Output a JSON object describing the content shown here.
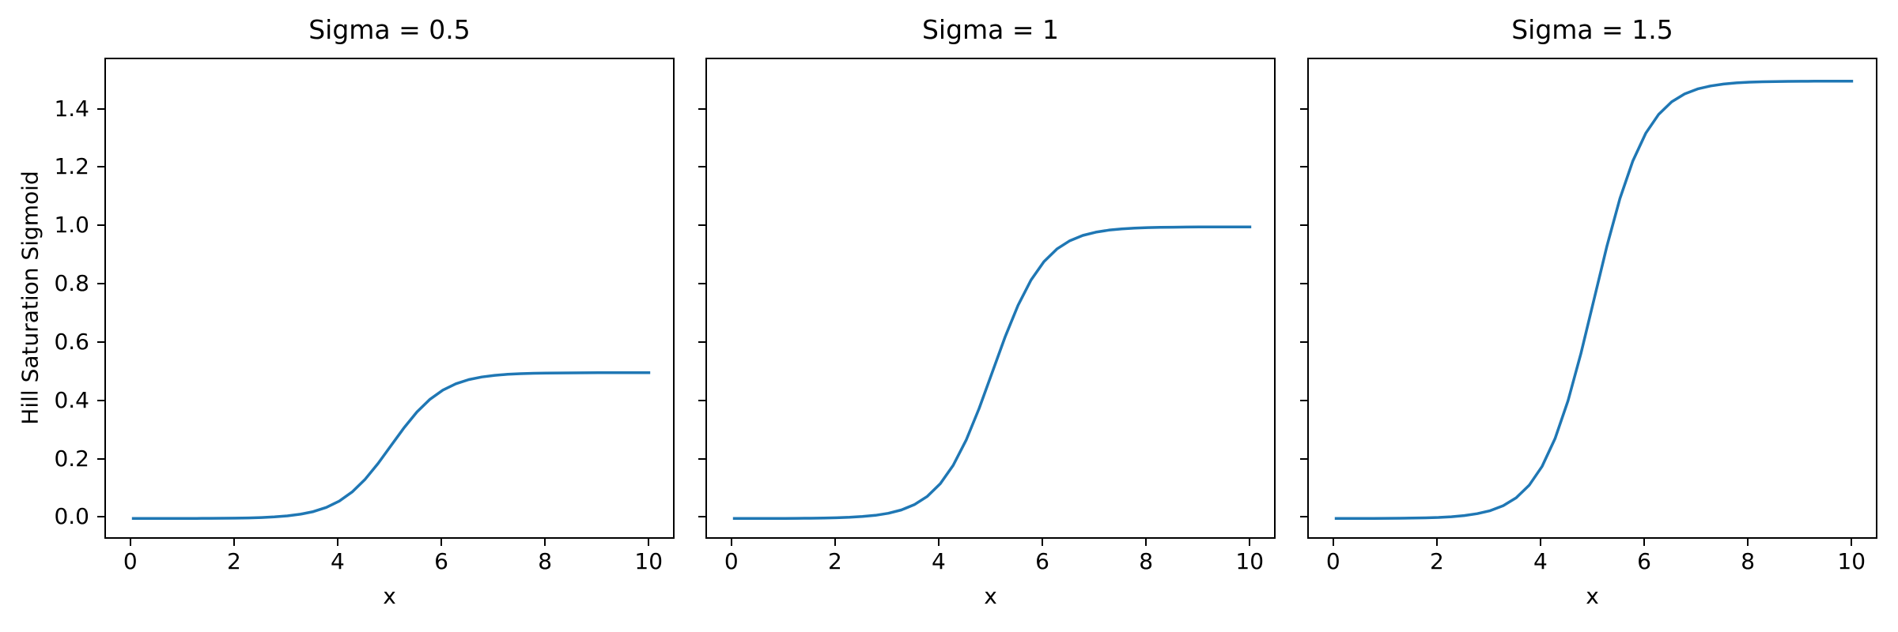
{
  "figure": {
    "background": "#ffffff",
    "line_color": "#1f77b4",
    "spine_color": "#000000",
    "text_color": "#000000"
  },
  "chart_data": [
    {
      "type": "line",
      "title": "Sigma = 0.5",
      "xlabel": "x",
      "ylabel": "Hill Saturation Sigmoid",
      "sigma": 0.5,
      "grid": false,
      "legend": "none",
      "xlim": [
        -0.5,
        10.5
      ],
      "ylim": [
        -0.075,
        1.575
      ],
      "xticks": [
        0,
        2,
        4,
        6,
        8,
        10
      ],
      "xtick_labels": [
        "0",
        "2",
        "4",
        "6",
        "8",
        "10"
      ],
      "ytick_values": [
        0.0,
        0.2,
        0.4,
        0.6,
        0.8,
        1.0,
        1.2,
        1.4
      ],
      "ytick_labels": [
        "0.0",
        "0.2",
        "0.4",
        "0.6",
        "0.8",
        "1.0",
        "1.2",
        "1.4"
      ],
      "show_ytick_labels": true,
      "x": [
        0,
        0.25,
        0.5,
        0.75,
        1,
        1.25,
        1.5,
        1.75,
        2,
        2.25,
        2.5,
        2.75,
        3,
        3.25,
        3.5,
        3.75,
        4,
        4.25,
        4.5,
        4.75,
        5,
        5.25,
        5.5,
        5.75,
        6,
        6.25,
        6.5,
        6.75,
        7,
        7.25,
        7.5,
        7.75,
        8,
        8.25,
        8.5,
        8.75,
        9,
        9.25,
        9.5,
        9.75,
        10
      ],
      "y": [
        0.0,
        0.0,
        0.0001,
        0.0001,
        0.0002,
        0.0003,
        0.0005,
        0.0008,
        0.0012,
        0.002,
        0.0033,
        0.0055,
        0.009,
        0.0147,
        0.0237,
        0.0379,
        0.0596,
        0.0912,
        0.1345,
        0.1888,
        0.25,
        0.3112,
        0.3655,
        0.4088,
        0.4404,
        0.4621,
        0.4763,
        0.4853,
        0.491,
        0.4945,
        0.4967,
        0.498,
        0.4988,
        0.4992,
        0.4995,
        0.4997,
        0.4998,
        0.4999,
        0.4999,
        0.5,
        0.5
      ]
    },
    {
      "type": "line",
      "title": "Sigma = 1",
      "xlabel": "x",
      "ylabel": "",
      "sigma": 1,
      "grid": false,
      "legend": "none",
      "xlim": [
        -0.5,
        10.5
      ],
      "ylim": [
        -0.075,
        1.575
      ],
      "xticks": [
        0,
        2,
        4,
        6,
        8,
        10
      ],
      "xtick_labels": [
        "0",
        "2",
        "4",
        "6",
        "8",
        "10"
      ],
      "ytick_values": [
        0.0,
        0.2,
        0.4,
        0.6,
        0.8,
        1.0,
        1.2,
        1.4
      ],
      "ytick_labels": [
        "0.0",
        "0.2",
        "0.4",
        "0.6",
        "0.8",
        "1.0",
        "1.2",
        "1.4"
      ],
      "show_ytick_labels": false,
      "x": [
        0,
        0.25,
        0.5,
        0.75,
        1,
        1.25,
        1.5,
        1.75,
        2,
        2.25,
        2.5,
        2.75,
        3,
        3.25,
        3.5,
        3.75,
        4,
        4.25,
        4.5,
        4.75,
        5,
        5.25,
        5.5,
        5.75,
        6,
        6.25,
        6.5,
        6.75,
        7,
        7.25,
        7.5,
        7.75,
        8,
        8.25,
        8.5,
        8.75,
        9,
        9.25,
        9.5,
        9.75,
        10
      ],
      "y": [
        0.0,
        0.0001,
        0.0001,
        0.0002,
        0.0003,
        0.0006,
        0.0009,
        0.0015,
        0.0025,
        0.0041,
        0.0067,
        0.011,
        0.018,
        0.0293,
        0.0474,
        0.0759,
        0.1192,
        0.1824,
        0.2689,
        0.3775,
        0.5,
        0.6225,
        0.7311,
        0.8176,
        0.8808,
        0.9241,
        0.9526,
        0.9707,
        0.982,
        0.989,
        0.9933,
        0.9959,
        0.9975,
        0.9985,
        0.9991,
        0.9994,
        0.9997,
        0.9998,
        0.9999,
        0.9999,
        1.0
      ]
    },
    {
      "type": "line",
      "title": "Sigma = 1.5",
      "xlabel": "x",
      "ylabel": "",
      "sigma": 1.5,
      "grid": false,
      "legend": "none",
      "xlim": [
        -0.5,
        10.5
      ],
      "ylim": [
        -0.075,
        1.575
      ],
      "xticks": [
        0,
        2,
        4,
        6,
        8,
        10
      ],
      "xtick_labels": [
        "0",
        "2",
        "4",
        "6",
        "8",
        "10"
      ],
      "ytick_values": [
        0.0,
        0.2,
        0.4,
        0.6,
        0.8,
        1.0,
        1.2,
        1.4
      ],
      "ytick_labels": [
        "0.0",
        "0.2",
        "0.4",
        "0.6",
        "0.8",
        "1.0",
        "1.2",
        "1.4"
      ],
      "show_ytick_labels": false,
      "x": [
        0,
        0.25,
        0.5,
        0.75,
        1,
        1.25,
        1.5,
        1.75,
        2,
        2.25,
        2.5,
        2.75,
        3,
        3.25,
        3.5,
        3.75,
        4,
        4.25,
        4.5,
        4.75,
        5,
        5.25,
        5.5,
        5.75,
        6,
        6.25,
        6.5,
        6.75,
        7,
        7.25,
        7.5,
        7.75,
        8,
        8.25,
        8.5,
        8.75,
        9,
        9.25,
        9.5,
        9.75,
        10
      ],
      "y": [
        0.0001,
        0.0001,
        0.0002,
        0.0003,
        0.0005,
        0.0008,
        0.0014,
        0.0023,
        0.0037,
        0.0061,
        0.01,
        0.0165,
        0.027,
        0.044,
        0.0711,
        0.1138,
        0.1788,
        0.2736,
        0.4034,
        0.5663,
        0.75,
        0.9337,
        1.0966,
        1.2264,
        1.3212,
        1.3862,
        1.4289,
        1.456,
        1.473,
        1.4835,
        1.49,
        1.4939,
        1.4963,
        1.4977,
        1.4986,
        1.4992,
        1.4995,
        1.4997,
        1.4998,
        1.4999,
        1.4999
      ]
    }
  ]
}
